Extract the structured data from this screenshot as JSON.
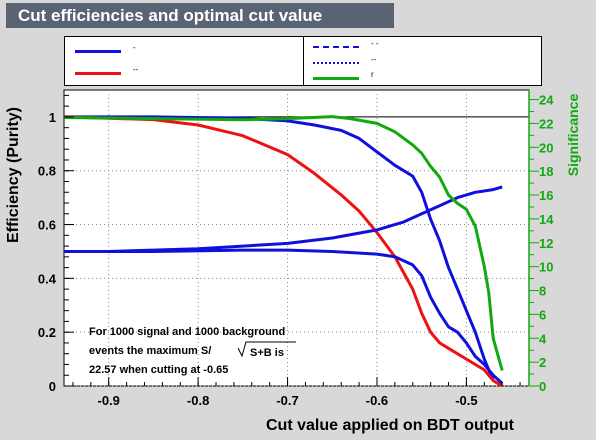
{
  "title": "Cut efficiencies and optimal cut value",
  "legend": {
    "entries": [
      {
        "label": "-",
        "color": "#1010dd",
        "style": "solid"
      },
      {
        "label": "--",
        "color": "#ee1111",
        "style": "solid"
      },
      {
        "label": "- -",
        "color": "#1010dd",
        "style": "dashed"
      },
      {
        "label": "--",
        "color": "#1010dd",
        "style": "dotted"
      },
      {
        "label": "r",
        "color": "#10aa10",
        "style": "solid"
      }
    ]
  },
  "annotation": {
    "line1": "For 1000 signal and 1000 background",
    "line2a": "events the maximum S/",
    "line2b": "S+B is",
    "line3": "22.57 when cutting at -0.65"
  },
  "chart_data": {
    "type": "line",
    "xlabel": "Cut value applied on BDT output",
    "ylabel": "Efficiency (Purity)",
    "y2label": "Significance",
    "xlim": [
      -0.95,
      -0.43
    ],
    "ylim": [
      0,
      1.1
    ],
    "y2lim": [
      0,
      24.8
    ],
    "grid": true,
    "xticks": [
      -0.9,
      -0.8,
      -0.7,
      -0.6,
      -0.5
    ],
    "yticks": [
      0,
      0.2,
      0.4,
      0.6,
      0.8,
      1
    ],
    "y2ticks": [
      0,
      2,
      4,
      6,
      8,
      10,
      12,
      14,
      16,
      18,
      20,
      22,
      24
    ],
    "reference_line": 1.0,
    "series": [
      {
        "color": "#1010dd",
        "style": "solid",
        "axis": "left",
        "x": [
          -0.95,
          -0.85,
          -0.75,
          -0.7,
          -0.67,
          -0.64,
          -0.62,
          -0.6,
          -0.58,
          -0.56,
          -0.55,
          -0.54,
          -0.53,
          -0.52,
          -0.51,
          -0.5,
          -0.49,
          -0.48,
          -0.47
        ],
        "y": [
          1.0,
          1.0,
          0.995,
          0.985,
          0.97,
          0.95,
          0.92,
          0.87,
          0.82,
          0.78,
          0.72,
          0.62,
          0.54,
          0.44,
          0.36,
          0.28,
          0.2,
          0.1,
          0.02
        ]
      },
      {
        "color": "#ee1111",
        "style": "solid",
        "axis": "left",
        "x": [
          -0.95,
          -0.85,
          -0.8,
          -0.75,
          -0.7,
          -0.67,
          -0.64,
          -0.62,
          -0.6,
          -0.58,
          -0.57,
          -0.56,
          -0.55,
          -0.54,
          -0.53,
          -0.52,
          -0.5,
          -0.48,
          -0.47,
          -0.46
        ],
        "y": [
          1.0,
          0.99,
          0.97,
          0.93,
          0.86,
          0.79,
          0.71,
          0.65,
          0.57,
          0.48,
          0.42,
          0.36,
          0.27,
          0.2,
          0.16,
          0.14,
          0.1,
          0.06,
          0.02,
          0.0
        ]
      },
      {
        "color": "#1010dd",
        "style": "solid",
        "axis": "left",
        "x": [
          -0.95,
          -0.9,
          -0.85,
          -0.8,
          -0.75,
          -0.7,
          -0.65,
          -0.6,
          -0.57,
          -0.55,
          -0.53,
          -0.51,
          -0.49,
          -0.47,
          -0.46
        ],
        "y": [
          0.5,
          0.5,
          0.505,
          0.51,
          0.52,
          0.53,
          0.55,
          0.58,
          0.61,
          0.64,
          0.67,
          0.7,
          0.72,
          0.73,
          0.74
        ]
      },
      {
        "color": "#1010dd",
        "style": "solid",
        "axis": "left",
        "x": [
          -0.95,
          -0.85,
          -0.75,
          -0.7,
          -0.65,
          -0.6,
          -0.58,
          -0.56,
          -0.55,
          -0.54,
          -0.53,
          -0.52,
          -0.51,
          -0.5,
          -0.49,
          -0.48,
          -0.47,
          -0.46
        ],
        "y": [
          0.5,
          0.5,
          0.505,
          0.505,
          0.5,
          0.49,
          0.48,
          0.45,
          0.41,
          0.33,
          0.27,
          0.22,
          0.2,
          0.16,
          0.11,
          0.08,
          0.04,
          0.01
        ]
      },
      {
        "color": "#10aa10",
        "style": "solid",
        "axis": "right",
        "x": [
          -0.95,
          -0.85,
          -0.75,
          -0.7,
          -0.65,
          -0.63,
          -0.6,
          -0.58,
          -0.56,
          -0.55,
          -0.54,
          -0.53,
          -0.52,
          -0.51,
          -0.5,
          -0.49,
          -0.48,
          -0.475,
          -0.47,
          -0.46
        ],
        "y": [
          22.5,
          22.4,
          22.3,
          22.4,
          22.57,
          22.4,
          22.0,
          21.3,
          20.2,
          19.5,
          18.4,
          17.5,
          16.0,
          15.3,
          14.8,
          13.4,
          10.0,
          7.8,
          4.0,
          1.3
        ]
      }
    ]
  }
}
